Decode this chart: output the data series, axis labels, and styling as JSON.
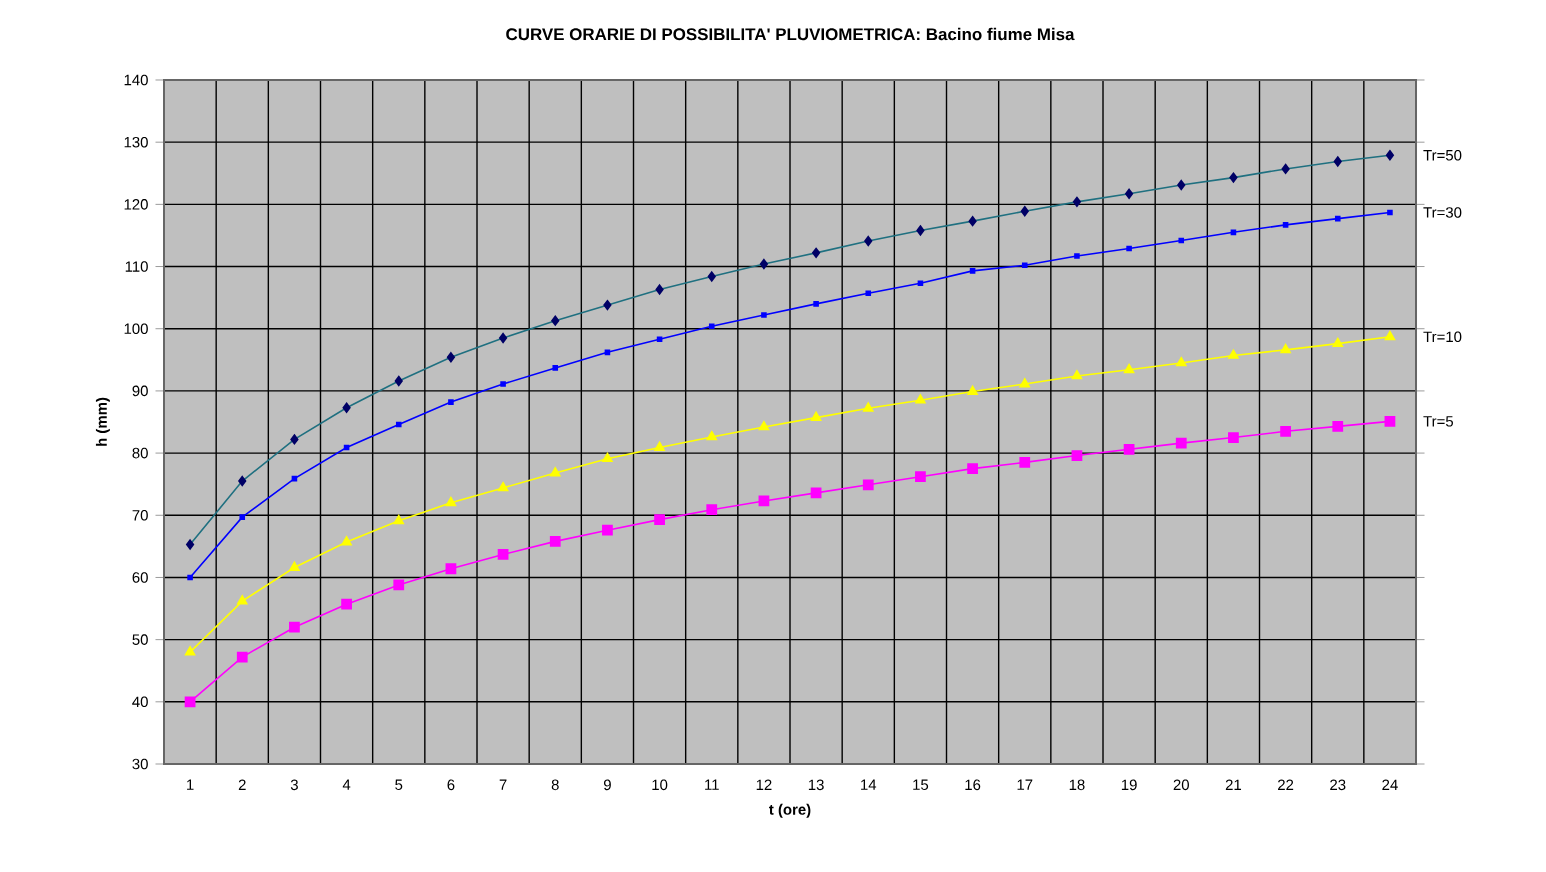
{
  "chart_data": {
    "type": "line",
    "title": "CURVE ORARIE DI POSSIBILITA' PLUVIOMETRICA: Bacino fiume Misa",
    "xlabel": "t (ore)",
    "ylabel": "h (mm)",
    "categories": [
      "1",
      "2",
      "3",
      "4",
      "5",
      "6",
      "7",
      "8",
      "9",
      "10",
      "11",
      "12",
      "13",
      "14",
      "15",
      "16",
      "17",
      "18",
      "19",
      "20",
      "21",
      "22",
      "23",
      "24"
    ],
    "ylim": [
      30,
      140
    ],
    "yticks": [
      30,
      40,
      50,
      60,
      70,
      80,
      90,
      100,
      110,
      120,
      130,
      140
    ],
    "grid": true,
    "legend": false,
    "series": [
      {
        "name": "Tr=50",
        "color": "#1f7080",
        "marker": "diamond",
        "values": [
          65.3,
          75.5,
          82.2,
          87.3,
          91.6,
          95.4,
          98.5,
          101.3,
          103.8,
          106.3,
          108.4,
          110.4,
          112.2,
          114.1,
          115.8,
          117.3,
          118.9,
          120.4,
          121.7,
          123.1,
          124.3,
          125.7,
          126.9,
          127.9
        ]
      },
      {
        "name": "Tr=30",
        "color": "#0000ff",
        "marker": "square",
        "values": [
          60.0,
          69.7,
          75.9,
          80.9,
          84.6,
          88.2,
          91.1,
          93.7,
          96.2,
          98.3,
          100.4,
          102.2,
          104.0,
          105.7,
          107.3,
          109.3,
          110.2,
          111.7,
          112.9,
          114.2,
          115.5,
          116.7,
          117.7,
          118.7
        ]
      },
      {
        "name": "Tr=10",
        "color": "#ffff00",
        "marker": "triangle",
        "values": [
          48.0,
          56.2,
          61.6,
          65.7,
          69.1,
          72.0,
          74.4,
          76.8,
          79.1,
          80.9,
          82.6,
          84.2,
          85.7,
          87.2,
          88.5,
          89.9,
          91.1,
          92.4,
          93.4,
          94.5,
          95.7,
          96.6,
          97.6,
          98.7
        ]
      },
      {
        "name": "Tr=5",
        "color": "#ff00ff",
        "marker": "square",
        "values": [
          40.0,
          47.2,
          52.0,
          55.7,
          58.8,
          61.4,
          63.7,
          65.8,
          67.6,
          69.3,
          70.9,
          72.3,
          73.6,
          74.9,
          76.2,
          77.5,
          78.5,
          79.6,
          80.6,
          81.6,
          82.5,
          83.5,
          84.3,
          85.1
        ]
      }
    ]
  }
}
